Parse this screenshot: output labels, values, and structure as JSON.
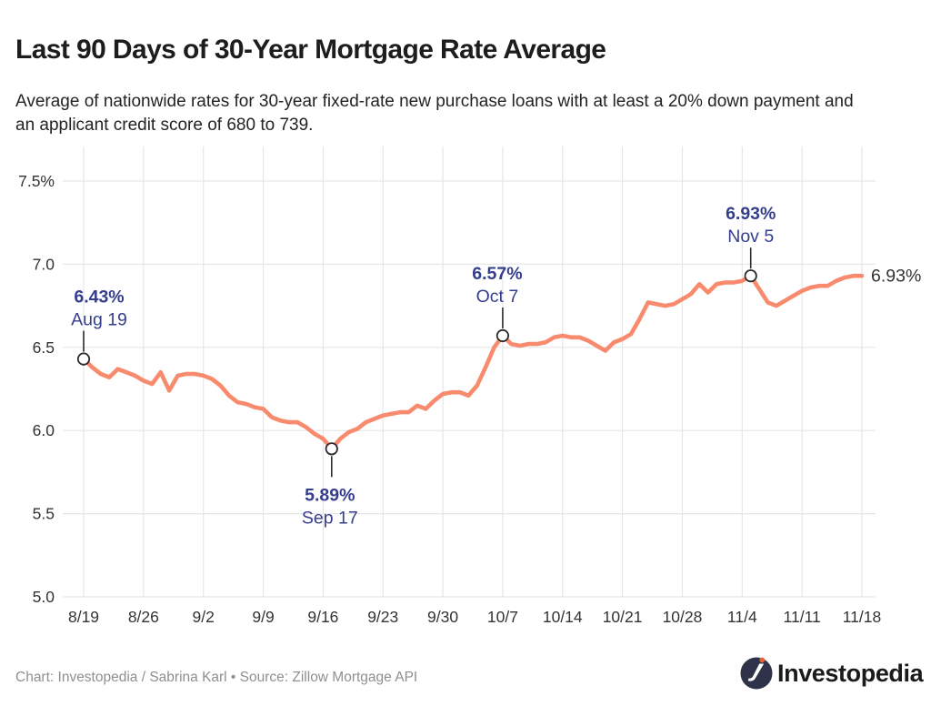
{
  "header": {
    "title": "Last 90 Days of 30-Year Mortgage Rate Average",
    "subtitle": "Average of nationwide rates for 30-year fixed-rate new purchase loans with at least a 20% down payment and an applicant credit score of 680 to 739."
  },
  "footer": {
    "credit": "Chart: Investopedia / Sabrina Karl • Source: Zillow Mortgage API",
    "logo_text": "Investopedia"
  },
  "chart_data": {
    "type": "line",
    "title": "Last 90 Days of 30-Year Mortgage Rate Average",
    "series_name": "30-year fixed mortgage rate average (%)",
    "xlabel": "",
    "ylabel": "",
    "ylim": [
      5.0,
      7.5
    ],
    "grid": true,
    "legend": "none",
    "dates": [
      "8/19",
      "8/20",
      "8/21",
      "8/22",
      "8/23",
      "8/24",
      "8/25",
      "8/26",
      "8/27",
      "8/28",
      "8/29",
      "8/30",
      "8/31",
      "9/1",
      "9/2",
      "9/3",
      "9/4",
      "9/5",
      "9/6",
      "9/7",
      "9/8",
      "9/9",
      "9/10",
      "9/11",
      "9/12",
      "9/13",
      "9/14",
      "9/15",
      "9/16",
      "9/17",
      "9/18",
      "9/19",
      "9/20",
      "9/21",
      "9/22",
      "9/23",
      "9/24",
      "9/25",
      "9/26",
      "9/27",
      "9/28",
      "9/29",
      "9/30",
      "10/1",
      "10/2",
      "10/3",
      "10/4",
      "10/5",
      "10/6",
      "10/7",
      "10/8",
      "10/9",
      "10/10",
      "10/11",
      "10/12",
      "10/13",
      "10/14",
      "10/15",
      "10/16",
      "10/17",
      "10/18",
      "10/19",
      "10/20",
      "10/21",
      "10/22",
      "10/23",
      "10/24",
      "10/25",
      "10/26",
      "10/27",
      "10/28",
      "10/29",
      "10/30",
      "10/31",
      "11/1",
      "11/2",
      "11/3",
      "11/4",
      "11/5",
      "11/6",
      "11/7",
      "11/8",
      "11/9",
      "11/10",
      "11/11",
      "11/12",
      "11/13",
      "11/14",
      "11/15",
      "11/16",
      "11/17",
      "11/18"
    ],
    "values": [
      6.43,
      6.38,
      6.34,
      6.32,
      6.37,
      6.35,
      6.33,
      6.3,
      6.28,
      6.35,
      6.24,
      6.33,
      6.34,
      6.34,
      6.33,
      6.31,
      6.27,
      6.21,
      6.17,
      6.16,
      6.14,
      6.13,
      6.08,
      6.06,
      6.05,
      6.05,
      6.02,
      5.98,
      5.95,
      5.89,
      5.95,
      5.99,
      6.01,
      6.05,
      6.07,
      6.09,
      6.1,
      6.11,
      6.11,
      6.15,
      6.13,
      6.18,
      6.22,
      6.23,
      6.23,
      6.21,
      6.27,
      6.38,
      6.5,
      6.57,
      6.52,
      6.51,
      6.52,
      6.52,
      6.53,
      6.56,
      6.57,
      6.56,
      6.56,
      6.54,
      6.51,
      6.48,
      6.53,
      6.55,
      6.58,
      6.67,
      6.77,
      6.76,
      6.75,
      6.76,
      6.79,
      6.82,
      6.88,
      6.83,
      6.88,
      6.89,
      6.89,
      6.9,
      6.93,
      6.85,
      6.77,
      6.75,
      6.78,
      6.81,
      6.84,
      6.86,
      6.87,
      6.87,
      6.9,
      6.92,
      6.93,
      6.93
    ],
    "x_ticks": [
      {
        "label": "8/19",
        "day": 0
      },
      {
        "label": "8/26",
        "day": 7
      },
      {
        "label": "9/2",
        "day": 14
      },
      {
        "label": "9/9",
        "day": 21
      },
      {
        "label": "9/16",
        "day": 28
      },
      {
        "label": "9/23",
        "day": 35
      },
      {
        "label": "9/30",
        "day": 42
      },
      {
        "label": "10/7",
        "day": 49
      },
      {
        "label": "10/14",
        "day": 56
      },
      {
        "label": "10/21",
        "day": 63
      },
      {
        "label": "10/28",
        "day": 70
      },
      {
        "label": "11/4",
        "day": 77
      },
      {
        "label": "11/11",
        "day": 84
      },
      {
        "label": "11/18",
        "day": 91
      }
    ],
    "y_ticks": [
      {
        "label": "5.0",
        "value": 5.0
      },
      {
        "label": "5.5",
        "value": 5.5
      },
      {
        "label": "6.0",
        "value": 6.0
      },
      {
        "label": "6.5",
        "value": 6.5
      },
      {
        "label": "7.0",
        "value": 7.0
      },
      {
        "label": "7.5%",
        "value": 7.5
      }
    ],
    "annotations": [
      {
        "value_label": "6.43%",
        "date_label": "Aug 19",
        "day": 0,
        "value": 6.43,
        "position": "above",
        "label_dx": 17
      },
      {
        "value_label": "5.89%",
        "date_label": "Sep 17",
        "day": 29,
        "value": 5.89,
        "position": "below",
        "label_dx": -2
      },
      {
        "value_label": "6.57%",
        "date_label": "Oct 7",
        "day": 49,
        "value": 6.57,
        "position": "above",
        "label_dx": -6
      },
      {
        "value_label": "6.93%",
        "date_label": "Nov 5",
        "day": 78,
        "value": 6.93,
        "position": "above",
        "label_dx": 0
      }
    ],
    "end_label": "6.93%",
    "colors": {
      "line": "#F88A6D",
      "grid": "#E6E6E6",
      "axis_text": "#333333",
      "annotation": "#353E8C",
      "marker": "#2B2B2B"
    }
  }
}
